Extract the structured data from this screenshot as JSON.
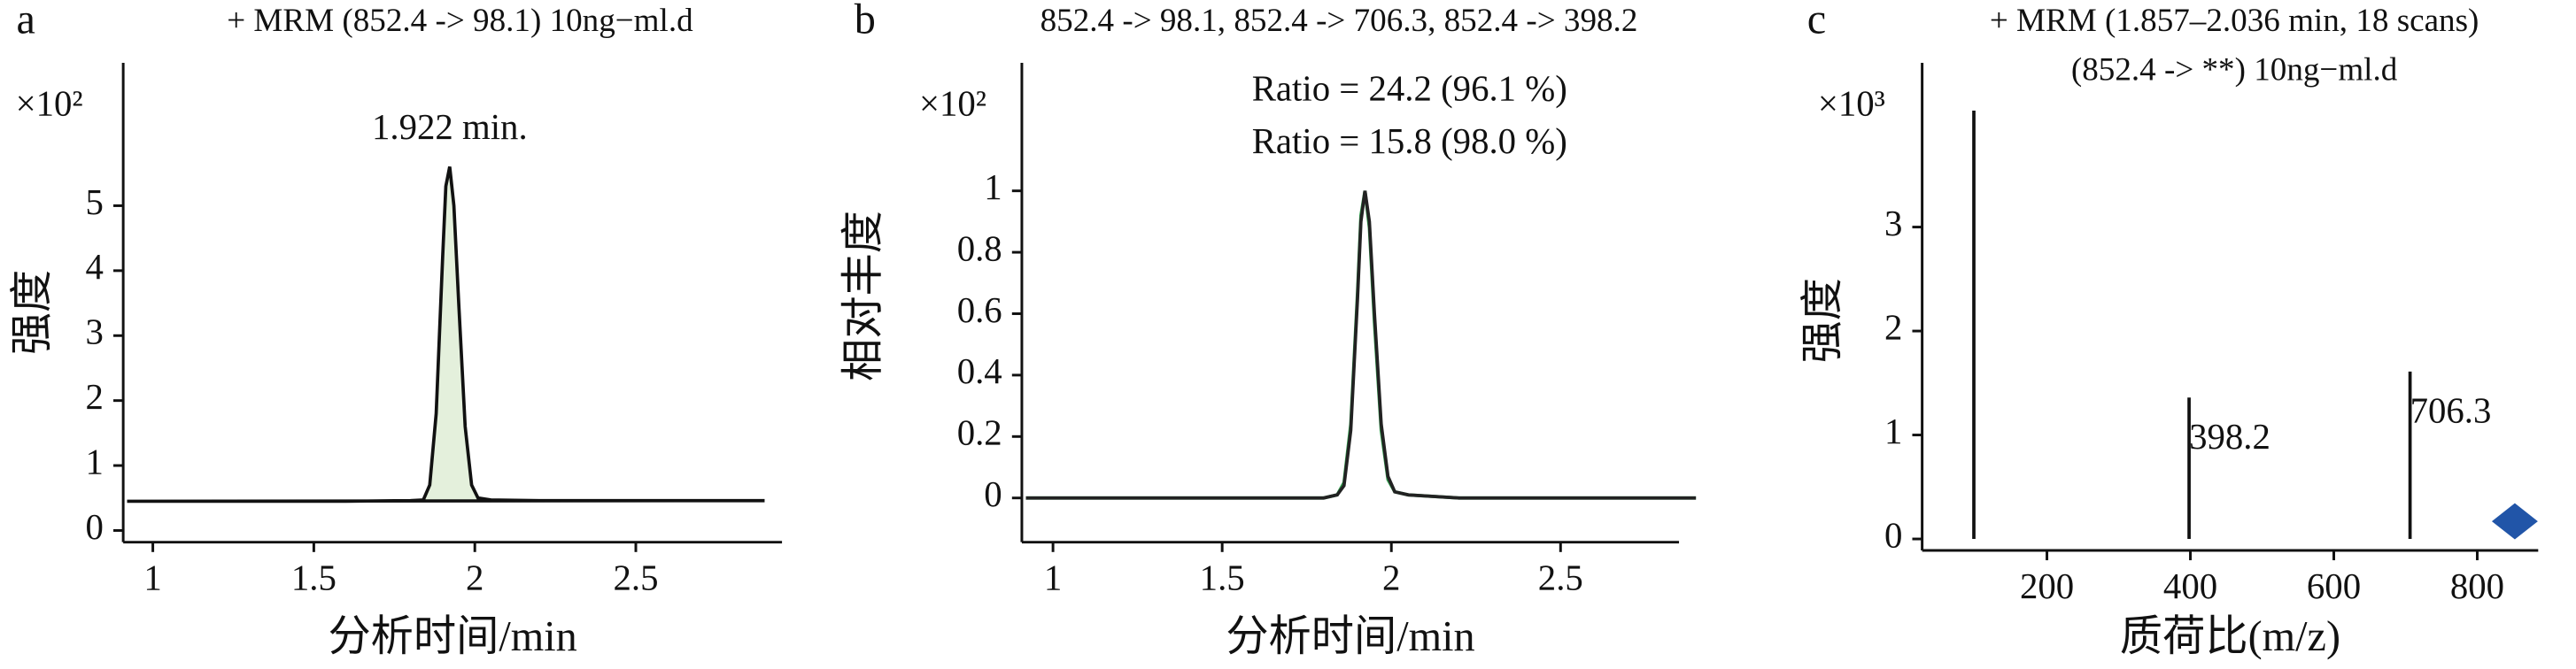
{
  "chart_data": [
    {
      "type": "line",
      "panel_label": "a",
      "title": "+ MRM (852.4 -> 98.1) 10ng−ml.d",
      "multiplier": "×10²",
      "ylabel": "强度",
      "xlabel": "分析时间/min",
      "annotation": "1.922 min.",
      "x": [
        0.92,
        1.0,
        1.2,
        1.4,
        1.6,
        1.8,
        1.84,
        1.86,
        1.88,
        1.9,
        1.91,
        1.922,
        1.935,
        1.95,
        1.97,
        1.99,
        2.01,
        2.05,
        2.2,
        2.5,
        2.9
      ],
      "series": [
        {
          "color": "#111111",
          "fill": "#e4f0dc",
          "values": [
            0.45,
            0.45,
            0.45,
            0.45,
            0.45,
            0.46,
            0.47,
            0.7,
            1.8,
            4.2,
            5.3,
            5.6,
            5.0,
            3.5,
            1.6,
            0.7,
            0.5,
            0.47,
            0.46,
            0.46,
            0.46
          ]
        }
      ],
      "xlim": [
        0.908,
        2.954
      ],
      "ylim": [
        -0.18,
        7.2
      ],
      "xticks": [
        1,
        1.5,
        2,
        2.5
      ],
      "yticks": [
        0,
        1,
        2,
        3,
        4,
        5
      ]
    },
    {
      "type": "line",
      "panel_label": "b",
      "title": "852.4 -> 98.1, 852.4 -> 706.3, 852.4 -> 398.2",
      "multiplier": "×10²",
      "ylabel": "相对丰度",
      "xlabel": "分析时间/min",
      "annotations": [
        "Ratio = 24.2 (96.1 %)",
        "Ratio = 15.8 (98.0 %)"
      ],
      "x": [
        0.92,
        1.0,
        1.2,
        1.4,
        1.6,
        1.8,
        1.84,
        1.86,
        1.88,
        1.9,
        1.91,
        1.922,
        1.935,
        1.95,
        1.97,
        1.99,
        2.01,
        2.05,
        2.2,
        2.5,
        2.9
      ],
      "series": [
        {
          "color": "#2e9a4a",
          "values": [
            0.0,
            0.0,
            0.0,
            0.0,
            0.0,
            0.0,
            0.01,
            0.05,
            0.24,
            0.67,
            0.92,
            1.0,
            0.88,
            0.57,
            0.22,
            0.06,
            0.02,
            0.01,
            0.0,
            0.0,
            0.0
          ]
        },
        {
          "color": "#222222",
          "values": [
            0.0,
            0.0,
            0.0,
            0.0,
            0.0,
            0.0,
            0.01,
            0.04,
            0.22,
            0.65,
            0.9,
            1.0,
            0.9,
            0.6,
            0.24,
            0.07,
            0.02,
            0.01,
            0.0,
            0.0,
            0.0
          ]
        }
      ],
      "xlim": [
        0.908,
        2.85
      ],
      "ylim": [
        -0.144,
        1.417
      ],
      "xticks": [
        1,
        1.5,
        2,
        2.5
      ],
      "yticks": [
        0,
        0.2,
        0.4,
        0.6,
        0.8,
        1
      ]
    },
    {
      "type": "stem",
      "panel_label": "c",
      "title": "+ MRM (1.857–2.036 min, 18 scans)",
      "subtitle": "(852.4 -> **) 10ng−ml.d",
      "multiplier": "×10³",
      "ylabel": "强度",
      "xlabel": "质荷比(m/z)",
      "x": [
        98.1,
        398.2,
        706.3
      ],
      "values": [
        4.12,
        1.36,
        1.61
      ],
      "labels": [
        null,
        "398.2",
        "706.3"
      ],
      "color": "#111111",
      "precursor": {
        "x": 852.4,
        "y": 0.17,
        "color": "#2155a8"
      },
      "xlim": [
        26,
        885
      ],
      "ylim": [
        -0.11,
        4.58
      ],
      "xticks": [
        200,
        400,
        600,
        800
      ],
      "yticks": [
        0,
        1,
        2,
        3
      ]
    }
  ]
}
